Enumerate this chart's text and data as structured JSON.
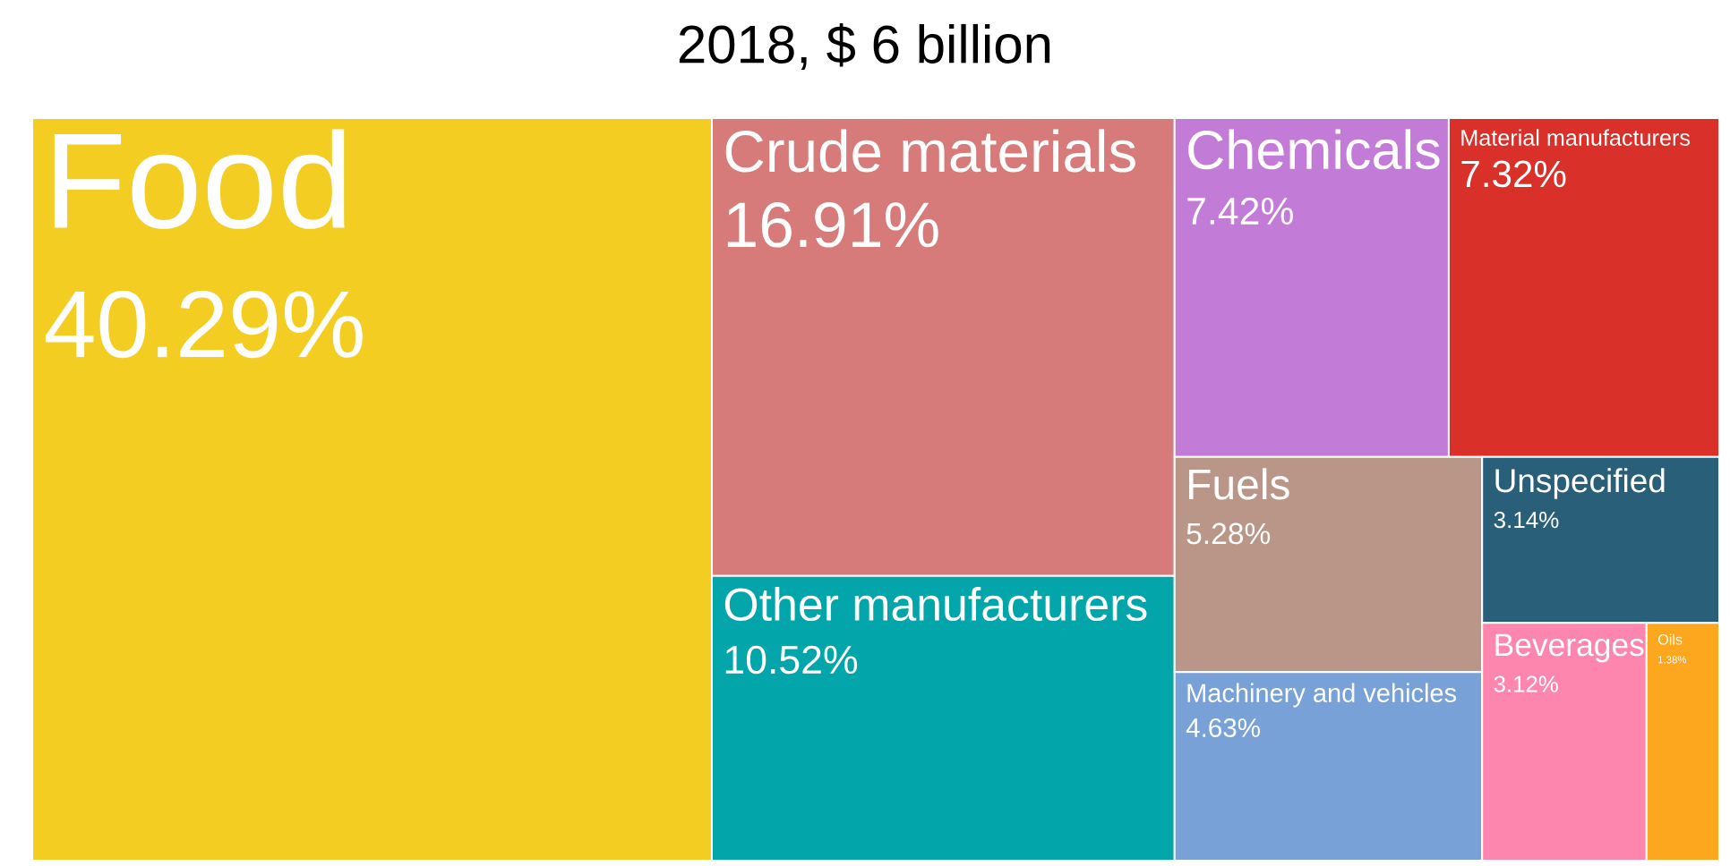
{
  "chart_data": {
    "type": "other",
    "title": "2018,  $ 6 billion",
    "categories": [
      "Food",
      "Crude materials",
      "Other manufacturers",
      "Chemicals",
      "Material manufacturers",
      "Fuels",
      "Machinery and vehicles",
      "Unspecified",
      "Beverages",
      "Oils"
    ],
    "values": [
      40.29,
      16.91,
      10.52,
      7.42,
      7.32,
      5.28,
      4.63,
      3.14,
      3.12,
      1.38
    ],
    "value_labels": [
      "40.29%",
      "16.91%",
      "10.52%",
      "7.42%",
      "7.32%",
      "5.28%",
      "4.63%",
      "3.14%",
      "3.12%",
      "1.38%"
    ],
    "colors": [
      "#f4cd23",
      "#d67b79",
      "#02a6aa",
      "#c27bd7",
      "#d93029",
      "#b99688",
      "#78a1d7",
      "#2a5f7a",
      "#fd86af",
      "#fca71e"
    ],
    "data_labels": true
  }
}
